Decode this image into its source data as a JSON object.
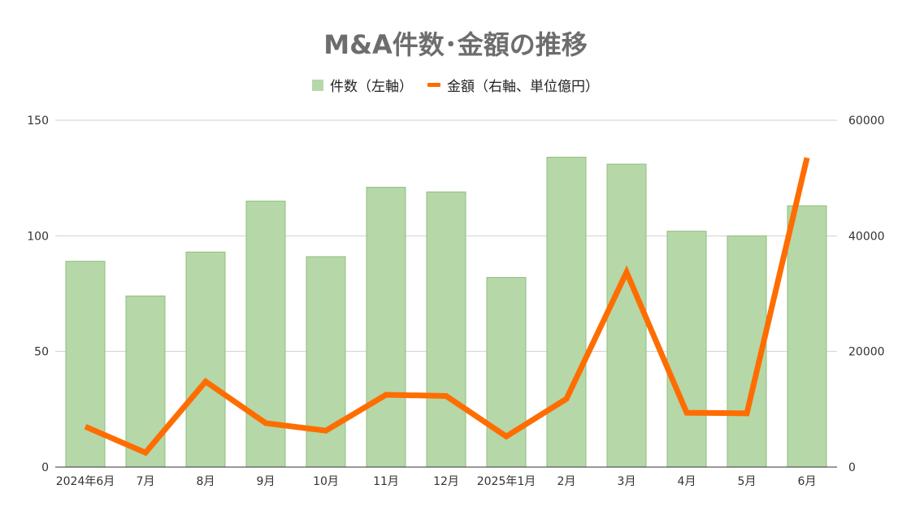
{
  "chart_data": {
    "type": "bar",
    "title": "M&A件数･金額の推移",
    "categories": [
      "2024年6月",
      "7月",
      "8月",
      "9月",
      "10月",
      "11月",
      "12月",
      "2025年1月",
      "2月",
      "3月",
      "4月",
      "5月",
      "6月"
    ],
    "series": [
      {
        "name": "件数（左軸）",
        "type": "bar",
        "axis": "left",
        "color": "#b6d7a8",
        "values": [
          89,
          74,
          93,
          115,
          91,
          121,
          119,
          82,
          134,
          131,
          102,
          100,
          113
        ]
      },
      {
        "name": "金額（右軸、単位億円）",
        "type": "line",
        "axis": "right",
        "color": "#ff6d01",
        "values": [
          7000,
          2500,
          14800,
          7600,
          6300,
          12500,
          12300,
          5300,
          11800,
          33700,
          9400,
          9300,
          53500
        ]
      }
    ],
    "y_left": {
      "ylim": [
        0,
        150
      ],
      "ticks": [
        "0",
        "50",
        "100",
        "150"
      ]
    },
    "y_right": {
      "ylim": [
        0,
        60000
      ],
      "ticks": [
        "0",
        "20000",
        "40000",
        "60000"
      ]
    },
    "grid": true,
    "legend": "top"
  }
}
